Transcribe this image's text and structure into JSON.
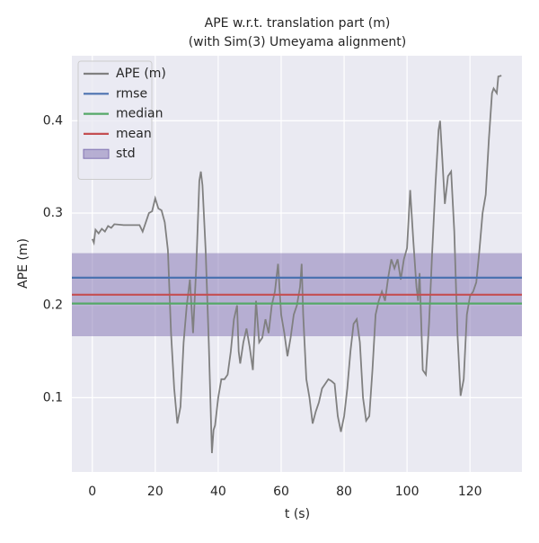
{
  "chart_data": {
    "type": "line",
    "title": "APE w.r.t. translation part (m)",
    "subtitle": "(with Sim(3) Umeyama alignment)",
    "xlabel": "t (s)",
    "ylabel": "APE (m)",
    "xlim": [
      -6.5,
      136.5
    ],
    "xticks": [
      0,
      20,
      40,
      60,
      80,
      100,
      120
    ],
    "ylim": [
      0.0195,
      0.4705
    ],
    "yticks": [
      0.1,
      0.2,
      0.3,
      0.4
    ],
    "grid": true,
    "legend": "upper left",
    "series": [
      {
        "name": "APE (m)",
        "color": "#808080",
        "x": [
          0,
          0.5,
          1,
          2,
          3,
          4,
          5,
          6,
          7,
          10,
          15,
          16,
          17,
          18,
          19,
          20,
          21,
          22,
          23,
          24,
          25,
          26,
          27,
          28,
          29,
          30,
          31,
          32,
          33,
          34,
          34.5,
          35,
          36,
          37,
          38,
          38.5,
          39,
          40,
          41,
          42,
          43,
          44,
          45,
          46,
          46.5,
          47,
          48,
          49,
          50,
          51,
          52,
          53,
          54,
          55,
          56,
          57,
          58,
          59,
          60,
          61,
          62,
          63,
          64,
          65,
          66,
          66.5,
          67,
          68,
          69,
          70,
          71,
          72,
          73,
          74,
          75,
          76,
          77,
          78,
          79,
          80,
          81,
          82,
          83,
          84,
          85,
          86,
          87,
          88,
          89,
          90,
          91,
          92,
          93,
          94,
          95,
          96,
          97,
          98,
          99,
          100,
          101,
          102,
          103,
          103.5,
          104,
          105,
          106,
          107,
          108,
          109,
          110,
          110.5,
          111,
          112,
          113,
          114,
          115,
          116,
          117,
          118,
          119,
          120,
          121,
          122,
          123,
          124,
          125,
          126,
          127,
          127.5,
          128.5,
          129,
          130
        ],
        "values": [
          0.272,
          0.268,
          0.282,
          0.278,
          0.283,
          0.28,
          0.286,
          0.284,
          0.288,
          0.287,
          0.287,
          0.28,
          0.29,
          0.3,
          0.302,
          0.316,
          0.305,
          0.303,
          0.29,
          0.26,
          0.17,
          0.11,
          0.072,
          0.09,
          0.16,
          0.2,
          0.228,
          0.17,
          0.24,
          0.335,
          0.345,
          0.33,
          0.26,
          0.16,
          0.04,
          0.065,
          0.07,
          0.1,
          0.12,
          0.12,
          0.125,
          0.15,
          0.185,
          0.2,
          0.15,
          0.137,
          0.16,
          0.175,
          0.155,
          0.13,
          0.205,
          0.16,
          0.165,
          0.185,
          0.17,
          0.2,
          0.215,
          0.245,
          0.19,
          0.17,
          0.145,
          0.165,
          0.19,
          0.2,
          0.22,
          0.245,
          0.19,
          0.12,
          0.1,
          0.072,
          0.085,
          0.095,
          0.11,
          0.115,
          0.12,
          0.118,
          0.115,
          0.08,
          0.063,
          0.08,
          0.11,
          0.15,
          0.18,
          0.185,
          0.16,
          0.1,
          0.075,
          0.08,
          0.13,
          0.19,
          0.205,
          0.215,
          0.205,
          0.23,
          0.25,
          0.24,
          0.25,
          0.228,
          0.25,
          0.262,
          0.325,
          0.27,
          0.22,
          0.205,
          0.235,
          0.13,
          0.125,
          0.18,
          0.26,
          0.33,
          0.39,
          0.4,
          0.37,
          0.31,
          0.34,
          0.345,
          0.28,
          0.17,
          0.102,
          0.12,
          0.19,
          0.21,
          0.215,
          0.225,
          0.26,
          0.3,
          0.32,
          0.38,
          0.43,
          0.435,
          0.43,
          0.448,
          0.449
        ]
      }
    ],
    "stats": [
      {
        "name": "rmse",
        "color": "#4c72b0",
        "value": 0.23
      },
      {
        "name": "median",
        "color": "#55a868",
        "value": 0.202
      },
      {
        "name": "mean",
        "color": "#c44e52",
        "value": 0.2116
      }
    ],
    "std": {
      "name": "std",
      "color": "#8172b2",
      "value": 0.045
    }
  }
}
